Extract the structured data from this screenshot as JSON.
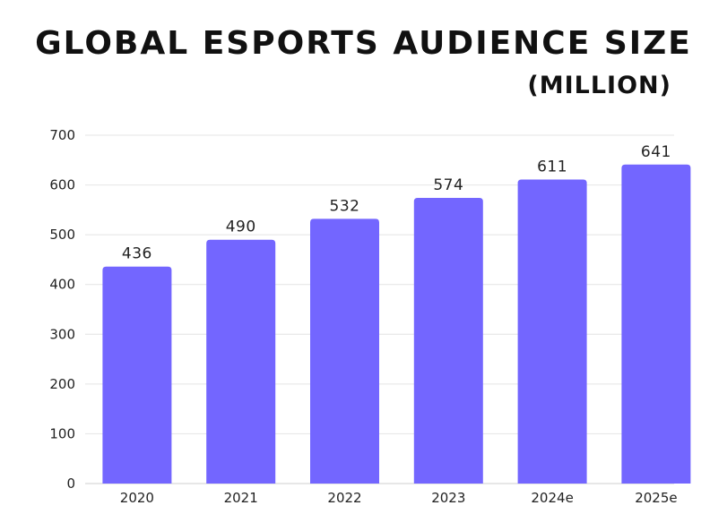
{
  "chart_data": {
    "type": "bar",
    "title": "GLOBAL ESPORTS AUDIENCE SIZE",
    "subtitle": "(MILLION)",
    "categories": [
      "2020",
      "2021",
      "2022",
      "2023",
      "2024e",
      "2025e"
    ],
    "values": [
      436,
      490,
      532,
      574,
      611,
      641
    ],
    "data_labels": [
      "436",
      "490",
      "532",
      "574",
      "611",
      "641"
    ],
    "ylim": [
      0,
      700
    ],
    "yticks": [
      0,
      100,
      200,
      300,
      400,
      500,
      600,
      700
    ],
    "grid": true,
    "bar_color": "#7366ff",
    "grid_color": "#e4e4e4"
  }
}
